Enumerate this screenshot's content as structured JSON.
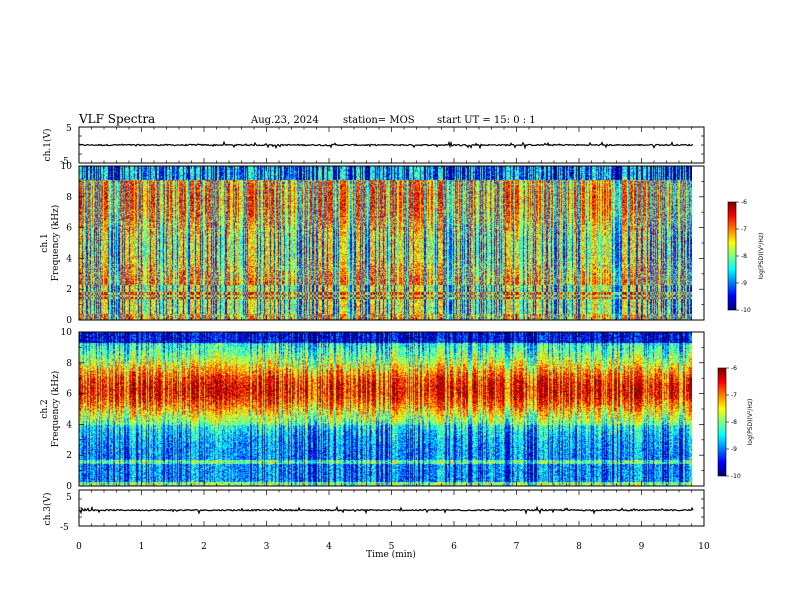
{
  "header": {
    "title": "VLF Spectra",
    "date": "Aug.23, 2024",
    "station": "station= MOS",
    "start": "start UT =  15: 0  : 1"
  },
  "chart_data": [
    {
      "type": "line",
      "panel": "ch1-waveform",
      "ylabel": "ch.1(V)",
      "ylim": [
        -5,
        5
      ],
      "yticks": [
        "5",
        "-5"
      ],
      "xlim": [
        0,
        10
      ],
      "x": [
        0,
        9.83
      ],
      "series": [
        {
          "values": [
            0,
            0
          ]
        }
      ]
    },
    {
      "type": "heatmap",
      "panel": "ch1-spectrogram",
      "ylabel": "ch.1",
      "ylabel2": "Frequency (kHz)",
      "ylim": [
        0,
        10
      ],
      "yticks": [
        "0",
        "2",
        "4",
        "6",
        "8",
        "10"
      ],
      "xlim": [
        0,
        10
      ],
      "x_data_end": 9.83,
      "colorbar": {
        "label": "log(PSD)(V²/Hz)",
        "range": [
          -10,
          -6
        ],
        "ticks": [
          "-6",
          "-7",
          "-8",
          "-9",
          "-10"
        ]
      }
    },
    {
      "type": "heatmap",
      "panel": "ch2-spectrogram",
      "ylabel": "ch.2",
      "ylabel2": "Frequency (kHz)",
      "ylim": [
        0,
        10
      ],
      "yticks": [
        "0",
        "2",
        "4",
        "6",
        "8",
        "10"
      ],
      "xlim": [
        0,
        10
      ],
      "x_data_end": 9.83,
      "colorbar": {
        "label": "log(PSD)(V²/Hz)",
        "range": [
          -10,
          -6
        ],
        "ticks": [
          "-6",
          "-7",
          "-8",
          "-9",
          "-10"
        ]
      }
    },
    {
      "type": "line",
      "panel": "ch3-waveform",
      "ylabel": "ch.3(V)",
      "ylim": [
        -5,
        5
      ],
      "yticks": [
        "5",
        "-5"
      ],
      "xlim": [
        0,
        10
      ],
      "x": [
        0,
        9.83
      ],
      "series": [
        {
          "values": [
            -0.6,
            -0.6
          ]
        }
      ],
      "xlabel": "Time (min)",
      "xticks": [
        "0",
        "1",
        "2",
        "3",
        "4",
        "5",
        "6",
        "7",
        "8",
        "9",
        "10"
      ]
    }
  ]
}
